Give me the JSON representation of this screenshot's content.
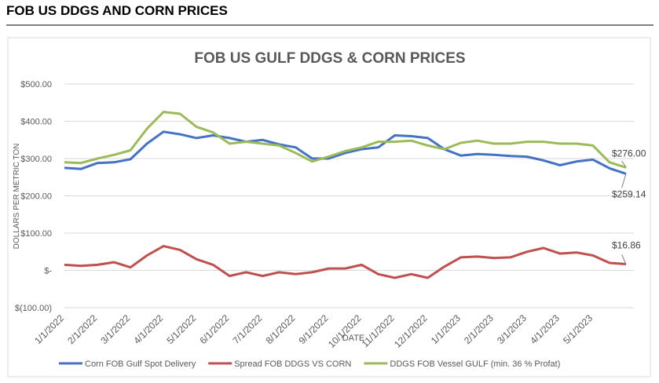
{
  "header": {
    "title": "FOB US DDGS AND CORN PRICES"
  },
  "chart_data": {
    "type": "line",
    "title": "FOB US GULF DDGS & CORN PRICES",
    "x_label": "DATE",
    "y_label": "DOLLARS PER METRIC TON",
    "categories": [
      "1/1/2022",
      null,
      "2/1/2022",
      null,
      "3/1/2022",
      null,
      "4/1/2022",
      null,
      "5/1/2022",
      null,
      "6/1/2022",
      null,
      "7/1/2022",
      null,
      "8/1/2022",
      null,
      "9/1/2022",
      null,
      "10/1/2022",
      null,
      "11/1/2022",
      null,
      "12/1/2022",
      null,
      "1/1/2023",
      null,
      "2/1/2023",
      null,
      "3/1/2023",
      null,
      "4/1/2023",
      null,
      "5/1/2023",
      null,
      null
    ],
    "ylim": [
      -100,
      500
    ],
    "yticks": [
      {
        "value": -100,
        "label": "$(100.00)"
      },
      {
        "value": 0,
        "label": "$-"
      },
      {
        "value": 100,
        "label": "$100.00"
      },
      {
        "value": 200,
        "label": "$200.00"
      },
      {
        "value": 300,
        "label": "$300.00"
      },
      {
        "value": 400,
        "label": "$400.00"
      },
      {
        "value": 500,
        "label": "$500.00"
      }
    ],
    "grid": true,
    "legend": "bottom",
    "series": [
      {
        "name": "Corn FOB Gulf Spot Delivery",
        "color": "#4472c4",
        "values": [
          275,
          272,
          288,
          290,
          298,
          340,
          372,
          365,
          355,
          362,
          355,
          345,
          350,
          338,
          330,
          300,
          300,
          315,
          325,
          330,
          362,
          360,
          355,
          325,
          308,
          312,
          310,
          307,
          305,
          295,
          282,
          292,
          297,
          274,
          259.14
        ],
        "value_labels": [
          null,
          null,
          null,
          null,
          null,
          null,
          null,
          null,
          null,
          null,
          null,
          null,
          null,
          null,
          null,
          null,
          null,
          null,
          null,
          null,
          null,
          null,
          null,
          null,
          null,
          null,
          null,
          null,
          null,
          null,
          null,
          null,
          null,
          null,
          "$259.14"
        ]
      },
      {
        "name": "Spread FOB DDGS VS CORN",
        "color": "#c0504d",
        "values": [
          15,
          12,
          15,
          22,
          8,
          40,
          65,
          55,
          30,
          15,
          -15,
          -5,
          -15,
          -5,
          -10,
          -5,
          5,
          5,
          15,
          -10,
          -20,
          -10,
          -20,
          10,
          35,
          37,
          33,
          35,
          50,
          60,
          45,
          48,
          40,
          20,
          16.86
        ],
        "value_labels": [
          null,
          null,
          null,
          null,
          null,
          null,
          null,
          null,
          null,
          null,
          null,
          null,
          null,
          null,
          null,
          null,
          null,
          null,
          null,
          null,
          null,
          null,
          null,
          null,
          null,
          null,
          null,
          null,
          null,
          null,
          null,
          null,
          null,
          null,
          "$16.86"
        ]
      },
      {
        "name": "DDGS FOB Vessel GULF  (min. 36 % Profat)",
        "color": "#9bbb59",
        "values": [
          290,
          288,
          300,
          310,
          322,
          380,
          425,
          420,
          385,
          370,
          340,
          345,
          340,
          335,
          315,
          292,
          305,
          320,
          330,
          345,
          345,
          348,
          335,
          325,
          342,
          348,
          340,
          340,
          345,
          345,
          340,
          340,
          335,
          290,
          276
        ],
        "value_labels": [
          null,
          null,
          null,
          null,
          null,
          null,
          null,
          null,
          null,
          null,
          null,
          null,
          null,
          null,
          null,
          null,
          null,
          null,
          null,
          null,
          null,
          null,
          null,
          null,
          null,
          null,
          null,
          null,
          null,
          null,
          null,
          null,
          null,
          null,
          "$276.00"
        ]
      }
    ]
  }
}
